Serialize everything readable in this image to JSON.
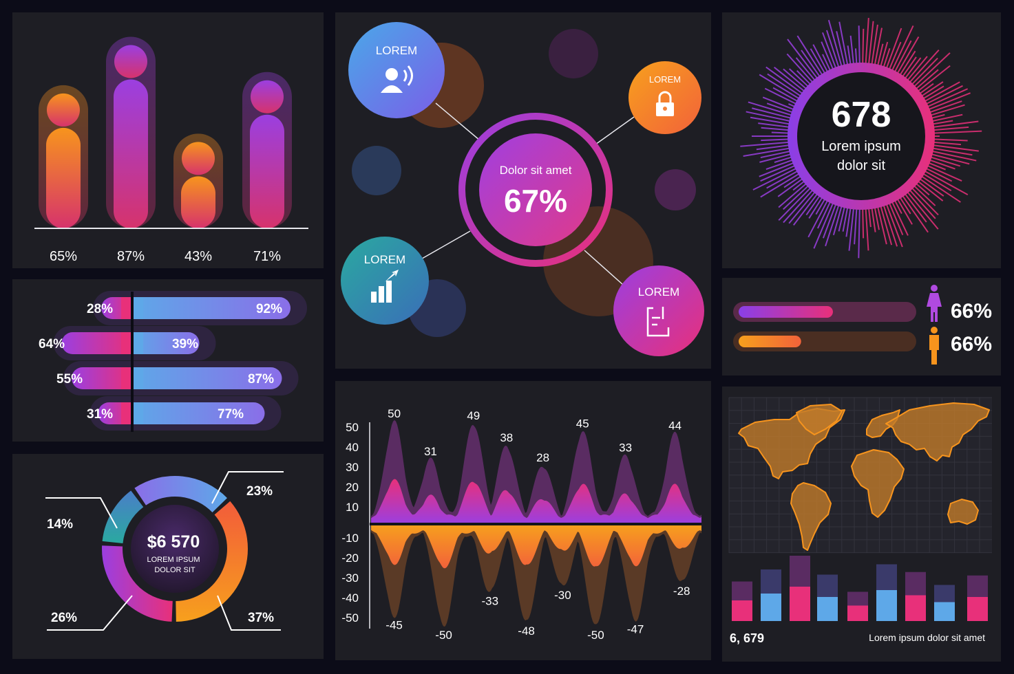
{
  "colors": {
    "background": "#0c0c18",
    "panel": "#1e1e24",
    "orange": "#f7941d",
    "pink": "#e83e8c",
    "purple": "#9b3fe0",
    "blue": "#5ea8e8",
    "teal": "#2aa9a0"
  },
  "chart_data": [
    {
      "id": "vbar",
      "type": "bar",
      "categories": [
        "65%",
        "87%",
        "43%",
        "71%"
      ],
      "values": [
        65,
        87,
        43,
        71
      ],
      "ylim": [
        0,
        100
      ],
      "series_colors": [
        "orange",
        "purple",
        "orange",
        "purple"
      ]
    },
    {
      "id": "hbar",
      "type": "bar",
      "orientation": "horizontal",
      "rows": [
        {
          "left": 28,
          "right": 92,
          "left_label": "28%",
          "right_label": "92%"
        },
        {
          "left": 64,
          "right": 39,
          "left_label": "64%",
          "right_label": "39%"
        },
        {
          "left": 55,
          "right": 87,
          "left_label": "55%",
          "right_label": "87%"
        },
        {
          "left": 31,
          "right": 77,
          "left_label": "31%",
          "right_label": "77%"
        }
      ],
      "xlim": [
        0,
        100
      ]
    },
    {
      "id": "donut",
      "type": "pie",
      "style": "donut",
      "center_value": "$6 570",
      "center_label_1": "LOREM IPSUM",
      "center_label_2": "DOLOR SIT",
      "slices": [
        {
          "label": "23%",
          "value": 23,
          "color": "blue"
        },
        {
          "label": "37%",
          "value": 37,
          "color": "orange"
        },
        {
          "label": "26%",
          "value": 26,
          "color": "pink"
        },
        {
          "label": "14%",
          "value": 14,
          "color": "teal"
        }
      ]
    },
    {
      "id": "wave",
      "type": "area",
      "y_ticks_top": [
        "50",
        "40",
        "30",
        "20",
        "10"
      ],
      "y_ticks_bottom": [
        "-10",
        "-20",
        "-30",
        "-40",
        "-50"
      ],
      "ylim": [
        -50,
        50
      ],
      "positive_peaks": [
        {
          "x": 0.07,
          "value": 50,
          "label": "50"
        },
        {
          "x": 0.18,
          "value": 31,
          "label": "31"
        },
        {
          "x": 0.31,
          "value": 49,
          "label": "49"
        },
        {
          "x": 0.41,
          "value": 38,
          "label": "38"
        },
        {
          "x": 0.52,
          "value": 28,
          "label": "28"
        },
        {
          "x": 0.64,
          "value": 45,
          "label": "45"
        },
        {
          "x": 0.77,
          "value": 33,
          "label": "33"
        },
        {
          "x": 0.92,
          "value": 44,
          "label": "44"
        }
      ],
      "negative_peaks": [
        {
          "x": 0.07,
          "value": -45,
          "label": "-45"
        },
        {
          "x": 0.22,
          "value": -50,
          "label": "-50"
        },
        {
          "x": 0.36,
          "value": -33,
          "label": "-33"
        },
        {
          "x": 0.47,
          "value": -48,
          "label": "-48"
        },
        {
          "x": 0.58,
          "value": -30,
          "label": "-30"
        },
        {
          "x": 0.68,
          "value": -50,
          "label": "-50"
        },
        {
          "x": 0.8,
          "value": -47,
          "label": "-47"
        },
        {
          "x": 0.94,
          "value": -28,
          "label": "-28"
        }
      ]
    },
    {
      "id": "minibars",
      "type": "bar",
      "ylim": [
        0,
        80
      ],
      "series": [
        {
          "values": [
            24,
            32,
            40,
            28,
            18,
            36,
            30,
            22,
            28
          ]
        },
        {
          "values": [
            46,
            60,
            76,
            54,
            34,
            66,
            57,
            42,
            53
          ]
        }
      ]
    }
  ],
  "network": {
    "center_label": "Dolor sit amet",
    "center_value": "67%",
    "nodes": [
      {
        "label": "LOREM",
        "icon": "user-voice-icon"
      },
      {
        "label": "LOREM",
        "icon": "lock-icon"
      },
      {
        "label": "LOREM",
        "icon": "bar-chart-icon"
      },
      {
        "label": "LOREM",
        "icon": "document-edit-icon"
      }
    ]
  },
  "burst": {
    "value": "678",
    "line1": "Lorem ipsum",
    "line2": "dolor sit"
  },
  "gender": {
    "female": {
      "value": 0.66,
      "label": "66%",
      "icon": "female-icon"
    },
    "male": {
      "value": 0.66,
      "label": "66%",
      "icon": "male-icon"
    }
  },
  "map": {
    "icon": "world-map-icon"
  },
  "footer": {
    "count": "6, 679",
    "caption": "Lorem ipsum dolor sit amet"
  }
}
